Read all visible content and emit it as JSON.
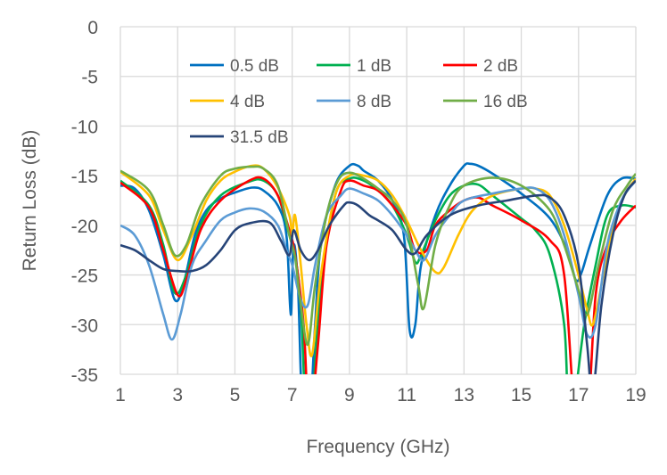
{
  "chart_data": {
    "type": "line",
    "title": "",
    "xlabel": "Frequency (GHz)",
    "ylabel": "Return Loss (dB)",
    "xlim": [
      1,
      19
    ],
    "ylim": [
      -35,
      0
    ],
    "xticks": [
      1,
      3,
      5,
      7,
      9,
      11,
      13,
      15,
      17,
      19
    ],
    "yticks": [
      0,
      -5,
      -10,
      -15,
      -20,
      -25,
      -30,
      -35
    ],
    "grid": true,
    "legend_placement": "top-inside",
    "series": [
      {
        "name": "0.5 dB",
        "color": "#0070C0",
        "points": [
          [
            1,
            -16
          ],
          [
            1.5,
            -16.3
          ],
          [
            2,
            -18.5
          ],
          [
            2.5,
            -23
          ],
          [
            2.9,
            -27.5
          ],
          [
            3.2,
            -26
          ],
          [
            3.6,
            -21
          ],
          [
            4,
            -18.5
          ],
          [
            4.5,
            -17.3
          ],
          [
            5,
            -16.7
          ],
          [
            5.6,
            -16.2
          ],
          [
            6,
            -16.5
          ],
          [
            6.5,
            -18
          ],
          [
            6.8,
            -21
          ],
          [
            6.95,
            -29
          ],
          [
            7.05,
            -22
          ],
          [
            7.2,
            -26
          ],
          [
            7.35,
            -38
          ],
          [
            7.6,
            -40
          ],
          [
            7.8,
            -30
          ],
          [
            8,
            -22
          ],
          [
            8.5,
            -16
          ],
          [
            9,
            -14
          ],
          [
            9.3,
            -14
          ],
          [
            9.5,
            -14.5
          ],
          [
            10,
            -15.5
          ],
          [
            10.5,
            -17.5
          ],
          [
            10.9,
            -21
          ],
          [
            11.1,
            -30.5
          ],
          [
            11.3,
            -30
          ],
          [
            11.5,
            -24
          ],
          [
            12,
            -19
          ],
          [
            12.5,
            -16
          ],
          [
            13,
            -14
          ],
          [
            13.2,
            -13.8
          ],
          [
            13.5,
            -14
          ],
          [
            14,
            -14.8
          ],
          [
            15,
            -16.8
          ],
          [
            16,
            -19.3
          ],
          [
            16.6,
            -22.5
          ],
          [
            16.9,
            -25.5
          ],
          [
            17.1,
            -24.8
          ],
          [
            17.4,
            -22
          ],
          [
            18,
            -17
          ],
          [
            18.5,
            -15.3
          ],
          [
            19,
            -15.3
          ]
        ]
      },
      {
        "name": "1 dB",
        "color": "#00B050",
        "points": [
          [
            1,
            -15.5
          ],
          [
            2,
            -18
          ],
          [
            2.5,
            -22
          ],
          [
            2.9,
            -26.8
          ],
          [
            3.3,
            -25
          ],
          [
            3.8,
            -20
          ],
          [
            4.5,
            -17
          ],
          [
            5.5,
            -15.6
          ],
          [
            6,
            -15.5
          ],
          [
            6.5,
            -17
          ],
          [
            6.9,
            -21
          ],
          [
            7.1,
            -23
          ],
          [
            7.3,
            -28
          ],
          [
            7.5,
            -40
          ],
          [
            7.7,
            -38
          ],
          [
            8,
            -26
          ],
          [
            8.5,
            -17
          ],
          [
            9,
            -15.3
          ],
          [
            9.5,
            -15.5
          ],
          [
            10,
            -16.5
          ],
          [
            10.5,
            -18
          ],
          [
            11,
            -21
          ],
          [
            11.3,
            -23.7
          ],
          [
            11.5,
            -23
          ],
          [
            12,
            -19.5
          ],
          [
            12.5,
            -17
          ],
          [
            13,
            -16
          ],
          [
            13.5,
            -15.9
          ],
          [
            14,
            -17
          ],
          [
            15,
            -19.3
          ],
          [
            15.5,
            -20.5
          ],
          [
            16,
            -23
          ],
          [
            16.5,
            -30
          ],
          [
            16.7,
            -40
          ],
          [
            17.2,
            -30
          ],
          [
            17.6,
            -24
          ],
          [
            18,
            -19
          ],
          [
            18.5,
            -18
          ],
          [
            19,
            -18.2
          ]
        ]
      },
      {
        "name": "2 dB",
        "color": "#FF0000",
        "points": [
          [
            1,
            -15.7
          ],
          [
            2,
            -18.2
          ],
          [
            2.5,
            -22.5
          ],
          [
            3,
            -27
          ],
          [
            3.3,
            -25.5
          ],
          [
            3.8,
            -20.5
          ],
          [
            4.5,
            -17.5
          ],
          [
            5.5,
            -15.5
          ],
          [
            6,
            -15.3
          ],
          [
            6.5,
            -17
          ],
          [
            6.9,
            -20.5
          ],
          [
            7.1,
            -23
          ],
          [
            7.4,
            -30
          ],
          [
            7.6,
            -40
          ],
          [
            7.9,
            -32
          ],
          [
            8.2,
            -22
          ],
          [
            8.7,
            -16.5
          ],
          [
            9,
            -15.5
          ],
          [
            9.5,
            -16
          ],
          [
            10,
            -16.5
          ],
          [
            10.5,
            -18
          ],
          [
            11,
            -20
          ],
          [
            11.3,
            -22.5
          ],
          [
            11.7,
            -22.5
          ],
          [
            12,
            -20
          ],
          [
            12.5,
            -18.5
          ],
          [
            13,
            -17.5
          ],
          [
            13.5,
            -17.2
          ],
          [
            14,
            -18
          ],
          [
            15,
            -19.5
          ],
          [
            16,
            -21.5
          ],
          [
            16.5,
            -25
          ],
          [
            16.9,
            -40
          ],
          [
            17.3,
            -40
          ],
          [
            17.6,
            -27
          ],
          [
            18,
            -22
          ],
          [
            18.5,
            -19.5
          ],
          [
            19,
            -18
          ]
        ]
      },
      {
        "name": "4 dB",
        "color": "#FFC000",
        "points": [
          [
            1,
            -14.6
          ],
          [
            2,
            -17
          ],
          [
            2.5,
            -20.5
          ],
          [
            3,
            -23.5
          ],
          [
            3.5,
            -21
          ],
          [
            4,
            -17.5
          ],
          [
            4.5,
            -15.5
          ],
          [
            5,
            -14.6
          ],
          [
            5.6,
            -14
          ],
          [
            6,
            -14.3
          ],
          [
            6.5,
            -16.2
          ],
          [
            6.9,
            -19
          ],
          [
            7,
            -21
          ],
          [
            7.1,
            -19
          ],
          [
            7.3,
            -24
          ],
          [
            7.5,
            -30
          ],
          [
            7.7,
            -33
          ],
          [
            8,
            -25
          ],
          [
            8.5,
            -17
          ],
          [
            9,
            -15
          ],
          [
            9.5,
            -15
          ],
          [
            10,
            -15.5
          ],
          [
            10.5,
            -17
          ],
          [
            11,
            -19.5
          ],
          [
            11.5,
            -22.5
          ],
          [
            12,
            -24.7
          ],
          [
            12.3,
            -24.2
          ],
          [
            12.8,
            -21
          ],
          [
            13.3,
            -18.5
          ],
          [
            14,
            -17
          ],
          [
            15,
            -16.3
          ],
          [
            15.5,
            -16.3
          ],
          [
            16,
            -17
          ],
          [
            16.5,
            -20
          ],
          [
            17,
            -25
          ],
          [
            17.3,
            -28.5
          ],
          [
            17.5,
            -30
          ],
          [
            17.8,
            -26
          ],
          [
            18.2,
            -20
          ],
          [
            18.6,
            -17
          ],
          [
            19,
            -15.3
          ]
        ]
      },
      {
        "name": "8 dB",
        "color": "#5B9BD5",
        "points": [
          [
            1,
            -20
          ],
          [
            1.5,
            -21
          ],
          [
            2,
            -24
          ],
          [
            2.5,
            -29
          ],
          [
            2.8,
            -31.5
          ],
          [
            3.1,
            -29
          ],
          [
            3.5,
            -24
          ],
          [
            4,
            -21.5
          ],
          [
            4.5,
            -19.5
          ],
          [
            5,
            -18.7
          ],
          [
            5.5,
            -18.3
          ],
          [
            6,
            -18.6
          ],
          [
            6.5,
            -20
          ],
          [
            6.8,
            -22.5
          ],
          [
            7,
            -24
          ],
          [
            7.3,
            -27.5
          ],
          [
            7.55,
            -28
          ],
          [
            7.8,
            -24
          ],
          [
            8.2,
            -19
          ],
          [
            8.7,
            -17
          ],
          [
            9,
            -16.3
          ],
          [
            9.5,
            -16.8
          ],
          [
            10,
            -17.5
          ],
          [
            10.5,
            -19
          ],
          [
            11,
            -21
          ],
          [
            11.3,
            -22.5
          ],
          [
            11.6,
            -23.5
          ],
          [
            12,
            -21
          ],
          [
            12.5,
            -19
          ],
          [
            13,
            -17.5
          ],
          [
            14,
            -16.8
          ],
          [
            15,
            -16.3
          ],
          [
            15.5,
            -16.3
          ],
          [
            16,
            -17.5
          ],
          [
            16.5,
            -21
          ],
          [
            17,
            -27
          ],
          [
            17.3,
            -31
          ],
          [
            17.6,
            -30
          ],
          [
            18,
            -22
          ],
          [
            18.5,
            -17.5
          ],
          [
            19,
            -15.5
          ]
        ]
      },
      {
        "name": "16 dB",
        "color": "#70AD47",
        "points": [
          [
            1,
            -14.5
          ],
          [
            2,
            -16.5
          ],
          [
            2.5,
            -20
          ],
          [
            2.9,
            -23
          ],
          [
            3.3,
            -22
          ],
          [
            3.8,
            -18
          ],
          [
            4.5,
            -15
          ],
          [
            5,
            -14.3
          ],
          [
            5.6,
            -14.1
          ],
          [
            6,
            -14.3
          ],
          [
            6.5,
            -16
          ],
          [
            6.9,
            -21
          ],
          [
            7.1,
            -23.2
          ],
          [
            7.3,
            -28
          ],
          [
            7.55,
            -32
          ],
          [
            7.8,
            -26
          ],
          [
            8.2,
            -19
          ],
          [
            8.6,
            -15.5
          ],
          [
            9,
            -14.7
          ],
          [
            9.5,
            -15.3
          ],
          [
            10,
            -16.3
          ],
          [
            10.5,
            -17.5
          ],
          [
            11,
            -20
          ],
          [
            11.4,
            -26
          ],
          [
            11.6,
            -28.3
          ],
          [
            12,
            -22
          ],
          [
            12.5,
            -18
          ],
          [
            13,
            -16
          ],
          [
            14,
            -15.2
          ],
          [
            15,
            -16
          ],
          [
            16,
            -18.5
          ],
          [
            16.5,
            -22
          ],
          [
            17,
            -26.5
          ],
          [
            17.3,
            -29
          ],
          [
            17.7,
            -24
          ],
          [
            18.2,
            -18.5
          ],
          [
            18.7,
            -16
          ],
          [
            19,
            -14.8
          ]
        ]
      },
      {
        "name": "31.5 dB",
        "color": "#264478",
        "points": [
          [
            1,
            -22
          ],
          [
            1.5,
            -22.5
          ],
          [
            2,
            -23.5
          ],
          [
            2.5,
            -24.4
          ],
          [
            3,
            -24.6
          ],
          [
            3.5,
            -24.6
          ],
          [
            4,
            -24
          ],
          [
            4.5,
            -22.5
          ],
          [
            5,
            -20.5
          ],
          [
            5.5,
            -19.8
          ],
          [
            6.2,
            -19.7
          ],
          [
            6.6,
            -21.5
          ],
          [
            6.9,
            -23
          ],
          [
            7.05,
            -20.5
          ],
          [
            7.3,
            -22.5
          ],
          [
            7.6,
            -23.5
          ],
          [
            7.9,
            -22.5
          ],
          [
            8.3,
            -20
          ],
          [
            8.8,
            -18
          ],
          [
            9,
            -17.7
          ],
          [
            9.3,
            -18
          ],
          [
            9.7,
            -19
          ],
          [
            10,
            -19.5
          ],
          [
            10.5,
            -20.5
          ],
          [
            11,
            -22.5
          ],
          [
            11.3,
            -22.8
          ],
          [
            11.7,
            -21
          ],
          [
            12.5,
            -19
          ],
          [
            13.5,
            -18
          ],
          [
            14.5,
            -17.5
          ],
          [
            15.5,
            -17
          ],
          [
            16,
            -17.2
          ],
          [
            16.5,
            -19
          ],
          [
            17,
            -24
          ],
          [
            17.3,
            -32
          ],
          [
            17.5,
            -37
          ],
          [
            17.8,
            -28
          ],
          [
            18.2,
            -21
          ],
          [
            18.6,
            -17
          ],
          [
            19,
            -15.5
          ]
        ]
      }
    ]
  }
}
